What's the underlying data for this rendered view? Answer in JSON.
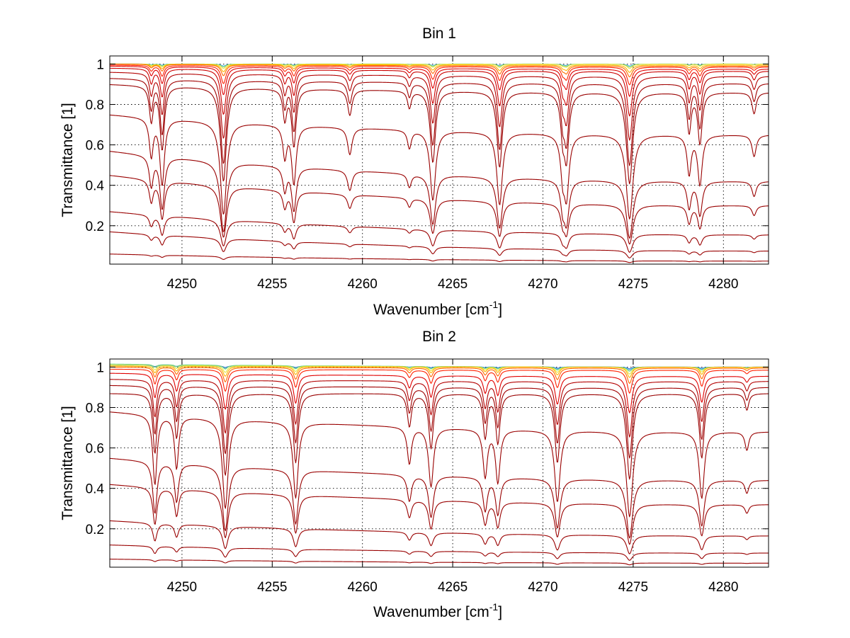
{
  "chart_data": [
    {
      "type": "line",
      "title": "Bin 1",
      "xlabel_main": "Wavenumber [cm",
      "xlabel_sup": "-1",
      "xlabel_end": "]",
      "ylabel": "Transmittance [1]",
      "xlim": [
        4246.0,
        4282.5
      ],
      "ylim": [
        0.01,
        1.04
      ],
      "xticks": [
        4250,
        4255,
        4260,
        4265,
        4270,
        4275,
        4280
      ],
      "xtick_labels": [
        "4250",
        "4255",
        "4260",
        "4265",
        "4270",
        "4275",
        "4280"
      ],
      "yticks": [
        0.2,
        0.4,
        0.6,
        0.8,
        1.0
      ],
      "ytick_labels": [
        "0.2",
        "0.4",
        "0.6",
        "0.8",
        "1"
      ],
      "grid": true,
      "legend": "none",
      "lines": [
        {
          "name": "",
          "color": "#4fb0e0",
          "start": 1.0,
          "end": 1.0,
          "depth_scale": 0.005
        },
        {
          "name": "",
          "color": "#7cd67a",
          "start": 1.0,
          "end": 1.0,
          "depth_scale": 0.008
        },
        {
          "name": "",
          "color": "#e6e640",
          "start": 1.0,
          "end": 1.0,
          "depth_scale": 0.012
        },
        {
          "name": "",
          "color": "#ffb400",
          "start": 1.0,
          "end": 0.995,
          "depth_scale": 0.02
        },
        {
          "name": "",
          "color": "#ff6a00",
          "start": 1.0,
          "end": 0.99,
          "depth_scale": 0.03
        },
        {
          "name": "",
          "color": "#ff2000",
          "start": 0.995,
          "end": 0.985,
          "depth_scale": 0.05
        },
        {
          "name": "",
          "color": "#e00000",
          "start": 0.99,
          "end": 0.975,
          "depth_scale": 0.08
        },
        {
          "name": "",
          "color": "#cc0000",
          "start": 0.98,
          "end": 0.965,
          "depth_scale": 0.14
        },
        {
          "name": "",
          "color": "#b30000",
          "start": 0.96,
          "end": 0.94,
          "depth_scale": 0.22
        },
        {
          "name": "",
          "color": "#a00000",
          "start": 0.93,
          "end": 0.905,
          "depth_scale": 0.32
        },
        {
          "name": "",
          "color": "#990000",
          "start": 0.9,
          "end": 0.86,
          "depth_scale": 0.4
        },
        {
          "name": "",
          "color": "#990000",
          "start": 0.75,
          "end": 0.65,
          "depth_scale": 0.55
        },
        {
          "name": "",
          "color": "#990000",
          "start": 0.57,
          "end": 0.42,
          "depth_scale": 0.6
        },
        {
          "name": "",
          "color": "#990000",
          "start": 0.45,
          "end": 0.3,
          "depth_scale": 0.55
        },
        {
          "name": "",
          "color": "#990000",
          "start": 0.27,
          "end": 0.155,
          "depth_scale": 0.45
        },
        {
          "name": "",
          "color": "#990000",
          "start": 0.17,
          "end": 0.075,
          "depth_scale": 0.35
        },
        {
          "name": "",
          "color": "#990000",
          "start": 0.06,
          "end": 0.025,
          "depth_scale": 0.2
        }
      ],
      "absorption_lines": [
        {
          "x": 4248.3,
          "width": 0.12,
          "depth": 0.25
        },
        {
          "x": 4248.9,
          "width": 0.13,
          "depth": 0.5
        },
        {
          "x": 4252.3,
          "width": 0.16,
          "depth": 0.85
        },
        {
          "x": 4255.7,
          "width": 0.12,
          "depth": 0.22
        },
        {
          "x": 4256.2,
          "width": 0.13,
          "depth": 0.45
        },
        {
          "x": 4259.3,
          "width": 0.14,
          "depth": 0.18
        },
        {
          "x": 4262.6,
          "width": 0.12,
          "depth": 0.12
        },
        {
          "x": 4263.9,
          "width": 0.15,
          "depth": 0.6
        },
        {
          "x": 4267.6,
          "width": 0.15,
          "depth": 0.65
        },
        {
          "x": 4271.1,
          "width": 0.12,
          "depth": 0.3
        },
        {
          "x": 4271.3,
          "width": 0.14,
          "depth": 0.55
        },
        {
          "x": 4274.8,
          "width": 0.17,
          "depth": 0.85
        },
        {
          "x": 4278.1,
          "width": 0.12,
          "depth": 0.3
        },
        {
          "x": 4278.7,
          "width": 0.13,
          "depth": 0.4
        },
        {
          "x": 4281.7,
          "width": 0.13,
          "depth": 0.15
        }
      ]
    },
    {
      "type": "line",
      "title": "Bin 2",
      "xlabel_main": "Wavenumber [cm",
      "xlabel_sup": "-1",
      "xlabel_end": "]",
      "ylabel": "Transmittance [1]",
      "xlim": [
        4246.0,
        4282.5
      ],
      "ylim": [
        0.01,
        1.04
      ],
      "xticks": [
        4250,
        4255,
        4260,
        4265,
        4270,
        4275,
        4280
      ],
      "xtick_labels": [
        "4250",
        "4255",
        "4260",
        "4265",
        "4270",
        "4275",
        "4280"
      ],
      "yticks": [
        0.2,
        0.4,
        0.6,
        0.8,
        1.0
      ],
      "ytick_labels": [
        "0.2",
        "0.4",
        "0.6",
        "0.8",
        "1"
      ],
      "grid": true,
      "legend": "none",
      "lines": [
        {
          "name": "",
          "color": "#2f6fd0",
          "start": 1.01,
          "end": 1.0,
          "depth_scale": 0.005
        },
        {
          "name": "",
          "color": "#4fb0e0",
          "start": 1.01,
          "end": 1.0,
          "depth_scale": 0.008
        },
        {
          "name": "",
          "color": "#7cd67a",
          "start": 1.015,
          "end": 1.0,
          "depth_scale": 0.012
        },
        {
          "name": "",
          "color": "#e6e640",
          "start": 1.01,
          "end": 1.0,
          "depth_scale": 0.02
        },
        {
          "name": "",
          "color": "#ffb400",
          "start": 1.005,
          "end": 1.0,
          "depth_scale": 0.03
        },
        {
          "name": "",
          "color": "#ff6a00",
          "start": 1.0,
          "end": 0.995,
          "depth_scale": 0.045
        },
        {
          "name": "",
          "color": "#ff2000",
          "start": 0.99,
          "end": 0.985,
          "depth_scale": 0.07
        },
        {
          "name": "",
          "color": "#e00000",
          "start": 0.97,
          "end": 0.955,
          "depth_scale": 0.12
        },
        {
          "name": "",
          "color": "#b30000",
          "start": 0.94,
          "end": 0.93,
          "depth_scale": 0.2
        },
        {
          "name": "",
          "color": "#a00000",
          "start": 0.91,
          "end": 0.9,
          "depth_scale": 0.28
        },
        {
          "name": "",
          "color": "#990000",
          "start": 0.87,
          "end": 0.87,
          "depth_scale": 0.38
        },
        {
          "name": "",
          "color": "#990000",
          "start": 0.78,
          "end": 0.68,
          "depth_scale": 0.55
        },
        {
          "name": "",
          "color": "#990000",
          "start": 0.55,
          "end": 0.44,
          "depth_scale": 0.6
        },
        {
          "name": "",
          "color": "#990000",
          "start": 0.42,
          "end": 0.32,
          "depth_scale": 0.55
        },
        {
          "name": "",
          "color": "#990000",
          "start": 0.24,
          "end": 0.165,
          "depth_scale": 0.45
        },
        {
          "name": "",
          "color": "#990000",
          "start": 0.12,
          "end": 0.08,
          "depth_scale": 0.35
        },
        {
          "name": "",
          "color": "#990000",
          "start": 0.05,
          "end": 0.03,
          "depth_scale": 0.2
        }
      ],
      "absorption_lines": [
        {
          "x": 4248.5,
          "width": 0.12,
          "depth": 0.5
        },
        {
          "x": 4249.7,
          "width": 0.12,
          "depth": 0.35
        },
        {
          "x": 4252.4,
          "width": 0.15,
          "depth": 0.75
        },
        {
          "x": 4256.3,
          "width": 0.14,
          "depth": 0.6
        },
        {
          "x": 4262.6,
          "width": 0.13,
          "depth": 0.25
        },
        {
          "x": 4263.8,
          "width": 0.14,
          "depth": 0.45
        },
        {
          "x": 4266.8,
          "width": 0.13,
          "depth": 0.35
        },
        {
          "x": 4267.5,
          "width": 0.13,
          "depth": 0.4
        },
        {
          "x": 4270.8,
          "width": 0.15,
          "depth": 0.6
        },
        {
          "x": 4274.8,
          "width": 0.16,
          "depth": 0.8
        },
        {
          "x": 4278.8,
          "width": 0.14,
          "depth": 0.55
        },
        {
          "x": 4281.3,
          "width": 0.12,
          "depth": 0.12
        }
      ]
    }
  ]
}
